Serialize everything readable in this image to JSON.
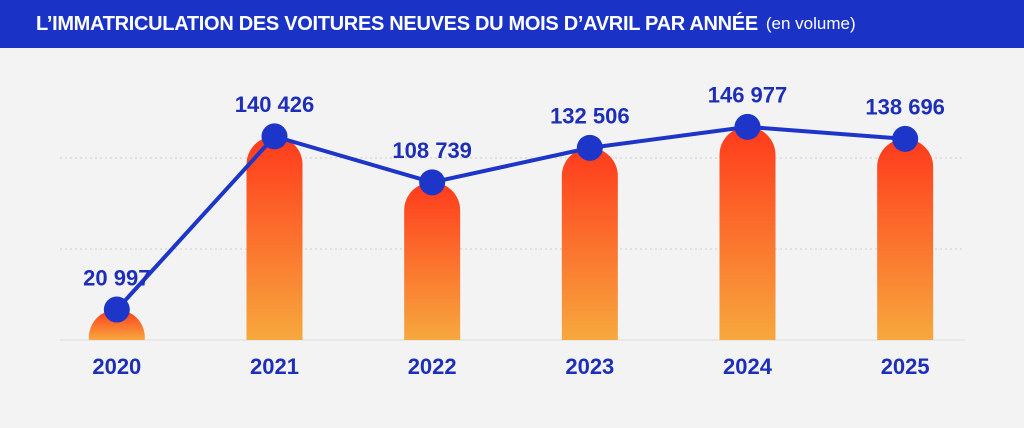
{
  "chart_data": {
    "type": "bar",
    "title": "L’IMMATRICULATION DES VOITURES NEUVES DU MOIS D’AVRIL PAR ANNÉE",
    "subtitle": "(en volume)",
    "categories": [
      "2020",
      "2021",
      "2022",
      "2023",
      "2024",
      "2025"
    ],
    "values": [
      20997,
      140426,
      108739,
      132506,
      146977,
      138696
    ],
    "value_labels": [
      "20 997",
      "140 426",
      "108 739",
      "132 506",
      "146 977",
      "138 696"
    ],
    "bar_colors": [
      "#ff3a1c",
      "#f7a83e"
    ],
    "line_color": "#1d36c9",
    "ylim": [
      0,
      160000
    ]
  }
}
